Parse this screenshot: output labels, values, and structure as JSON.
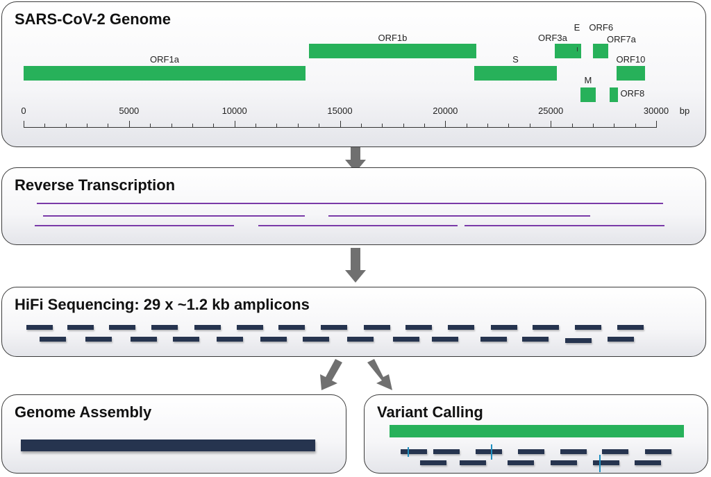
{
  "colors": {
    "gene": "#27b15a",
    "rna": "#7a3aa8",
    "read": "#26344f",
    "variant": "#1f8fc0",
    "arrow": "#707070"
  },
  "genome_panel": {
    "title": "SARS-CoV-2 Genome",
    "unit": "bp",
    "axis_ticks": [
      "0",
      "5000",
      "10000",
      "15000",
      "20000",
      "25000",
      "30000"
    ],
    "axis_range_bp": [
      0,
      30000
    ],
    "genes": [
      {
        "name": "ORF1a",
        "start": 0,
        "end": 13370
      },
      {
        "name": "ORF1b",
        "start": 13530,
        "end": 21470
      },
      {
        "name": "S",
        "start": 21370,
        "end": 25290
      },
      {
        "name": "ORF3a",
        "start": 25190,
        "end": 26440
      },
      {
        "name": "E",
        "start": 26240,
        "end": 26250
      },
      {
        "name": "ORF6",
        "start": 27120,
        "end": 27135
      },
      {
        "name": "ORF7a",
        "start": 27000,
        "end": 27725
      },
      {
        "name": "ORF10",
        "start": 28120,
        "end": 29470
      },
      {
        "name": "M",
        "start": 26410,
        "end": 27130
      },
      {
        "name": "ORF8",
        "start": 27790,
        "end": 28185
      }
    ]
  },
  "rt_panel": {
    "title": "Reverse Transcription"
  },
  "hifi_panel": {
    "title": "HiFi Sequencing: 29 x ~1.2 kb amplicons",
    "amplicon_count": 29
  },
  "assembly_panel": {
    "title": "Genome Assembly"
  },
  "variant_panel": {
    "title": "Variant Calling",
    "variant_count": 3
  }
}
